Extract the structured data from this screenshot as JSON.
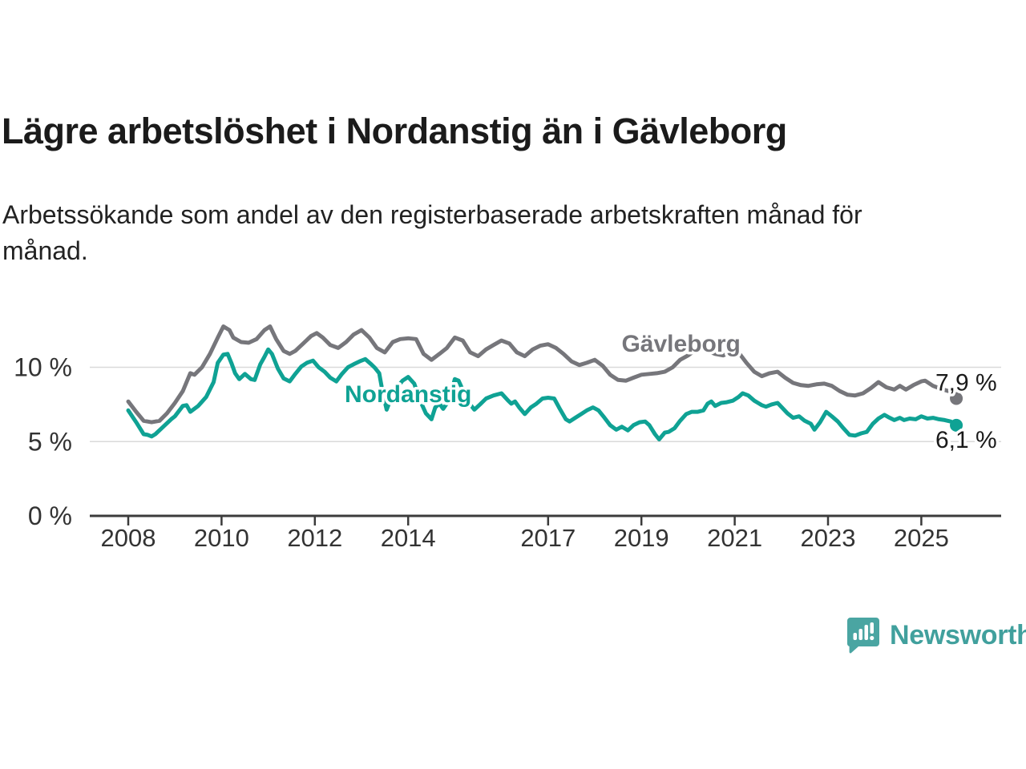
{
  "header": {
    "title": "Lägre arbetslöshet i Nordanstig än i Gävleborg",
    "subtitle": "Arbetssökande som andel av den registerbaserade arbetskraften månad för månad."
  },
  "footer": {
    "brand": "Newsworthy",
    "logo_icon": "speech-bubble-bar-chart-icon"
  },
  "colors": {
    "gavleborg": "#76767b",
    "nordanstig": "#0fa294",
    "axis": "#3b3b3b",
    "grid": "#d9d9d9",
    "tick_label": "#333333",
    "end_label": "#1a1a1a",
    "logo_teal": "#4aa5a2"
  },
  "chart_data": {
    "type": "line",
    "title": "Lägre arbetslöshet i Nordanstig än i Gävleborg",
    "subtitle": "Arbetssökande som andel av den registerbaserade arbetskraften månad för månad.",
    "xlabel": "",
    "ylabel": "",
    "xlim": [
      2007.9,
      2026.0
    ],
    "ylim": [
      0,
      13.5
    ],
    "grid": "horizontal",
    "legend_position": "inline-labels",
    "x_ticks": [
      2008,
      2010,
      2012,
      2014,
      2017,
      2019,
      2021,
      2023,
      2025
    ],
    "y_ticks": [
      {
        "value": 0,
        "label": "0 %"
      },
      {
        "value": 5,
        "label": "5 %"
      },
      {
        "value": 10,
        "label": "10 %"
      }
    ],
    "series": [
      {
        "name": "Gävleborg",
        "color": "#76767b",
        "end_label": "7,9 %",
        "end_value": 7.9,
        "inline_label_x": 2019.85,
        "inline_label_y": 11.6,
        "points": [
          [
            2008.0,
            7.7
          ],
          [
            2008.17,
            7.0
          ],
          [
            2008.33,
            6.4
          ],
          [
            2008.5,
            6.3
          ],
          [
            2008.67,
            6.4
          ],
          [
            2008.83,
            6.9
          ],
          [
            2009.0,
            7.6
          ],
          [
            2009.17,
            8.4
          ],
          [
            2009.33,
            9.6
          ],
          [
            2009.42,
            9.5
          ],
          [
            2009.58,
            10.0
          ],
          [
            2009.75,
            10.9
          ],
          [
            2009.92,
            12.0
          ],
          [
            2010.04,
            12.75
          ],
          [
            2010.17,
            12.5
          ],
          [
            2010.25,
            12.0
          ],
          [
            2010.42,
            11.7
          ],
          [
            2010.58,
            11.65
          ],
          [
            2010.75,
            11.9
          ],
          [
            2010.92,
            12.5
          ],
          [
            2011.04,
            12.75
          ],
          [
            2011.17,
            11.9
          ],
          [
            2011.33,
            11.1
          ],
          [
            2011.46,
            10.9
          ],
          [
            2011.58,
            11.1
          ],
          [
            2011.75,
            11.6
          ],
          [
            2011.92,
            12.1
          ],
          [
            2012.04,
            12.3
          ],
          [
            2012.17,
            12.0
          ],
          [
            2012.33,
            11.5
          ],
          [
            2012.5,
            11.3
          ],
          [
            2012.67,
            11.7
          ],
          [
            2012.83,
            12.2
          ],
          [
            2013.0,
            12.5
          ],
          [
            2013.17,
            12.0
          ],
          [
            2013.33,
            11.3
          ],
          [
            2013.5,
            11.0
          ],
          [
            2013.67,
            11.7
          ],
          [
            2013.83,
            11.9
          ],
          [
            2014.0,
            11.95
          ],
          [
            2014.17,
            11.9
          ],
          [
            2014.33,
            10.9
          ],
          [
            2014.5,
            10.5
          ],
          [
            2014.67,
            10.9
          ],
          [
            2014.83,
            11.3
          ],
          [
            2015.0,
            12.0
          ],
          [
            2015.17,
            11.8
          ],
          [
            2015.33,
            11.0
          ],
          [
            2015.5,
            10.75
          ],
          [
            2015.67,
            11.2
          ],
          [
            2015.83,
            11.5
          ],
          [
            2016.0,
            11.8
          ],
          [
            2016.17,
            11.6
          ],
          [
            2016.33,
            11.0
          ],
          [
            2016.5,
            10.75
          ],
          [
            2016.67,
            11.2
          ],
          [
            2016.83,
            11.45
          ],
          [
            2017.0,
            11.55
          ],
          [
            2017.17,
            11.3
          ],
          [
            2017.33,
            10.9
          ],
          [
            2017.5,
            10.4
          ],
          [
            2017.67,
            10.15
          ],
          [
            2017.83,
            10.3
          ],
          [
            2018.0,
            10.5
          ],
          [
            2018.17,
            10.1
          ],
          [
            2018.33,
            9.5
          ],
          [
            2018.5,
            9.15
          ],
          [
            2018.67,
            9.1
          ],
          [
            2018.83,
            9.3
          ],
          [
            2019.0,
            9.5
          ],
          [
            2019.17,
            9.55
          ],
          [
            2019.33,
            9.6
          ],
          [
            2019.5,
            9.7
          ],
          [
            2019.67,
            10.0
          ],
          [
            2019.83,
            10.5
          ],
          [
            2020.0,
            10.8
          ],
          [
            2020.17,
            11.2
          ],
          [
            2020.33,
            11.25
          ],
          [
            2020.42,
            11.1
          ],
          [
            2020.58,
            10.9
          ],
          [
            2020.75,
            10.8
          ],
          [
            2020.92,
            11.0
          ],
          [
            2021.08,
            11.0
          ],
          [
            2021.25,
            10.3
          ],
          [
            2021.42,
            9.7
          ],
          [
            2021.58,
            9.4
          ],
          [
            2021.75,
            9.6
          ],
          [
            2021.92,
            9.7
          ],
          [
            2022.08,
            9.3
          ],
          [
            2022.25,
            8.95
          ],
          [
            2022.42,
            8.8
          ],
          [
            2022.58,
            8.75
          ],
          [
            2022.75,
            8.85
          ],
          [
            2022.92,
            8.9
          ],
          [
            2023.08,
            8.75
          ],
          [
            2023.25,
            8.4
          ],
          [
            2023.42,
            8.15
          ],
          [
            2023.58,
            8.1
          ],
          [
            2023.75,
            8.25
          ],
          [
            2023.92,
            8.6
          ],
          [
            2024.08,
            9.0
          ],
          [
            2024.25,
            8.65
          ],
          [
            2024.42,
            8.5
          ],
          [
            2024.54,
            8.75
          ],
          [
            2024.67,
            8.5
          ],
          [
            2024.83,
            8.8
          ],
          [
            2025.0,
            9.05
          ],
          [
            2025.08,
            9.1
          ],
          [
            2025.25,
            8.75
          ],
          [
            2025.42,
            8.55
          ],
          [
            2025.58,
            8.4
          ],
          [
            2025.67,
            8.45
          ],
          [
            2025.75,
            7.9
          ]
        ]
      },
      {
        "name": "Nordanstig",
        "color": "#0fa294",
        "end_label": "6,1 %",
        "end_value": 6.1,
        "inline_label_x": 2014.0,
        "inline_label_y": 8.2,
        "points": [
          [
            2008.0,
            7.1
          ],
          [
            2008.17,
            6.3
          ],
          [
            2008.33,
            5.5
          ],
          [
            2008.42,
            5.45
          ],
          [
            2008.5,
            5.35
          ],
          [
            2008.58,
            5.5
          ],
          [
            2008.75,
            6.0
          ],
          [
            2008.92,
            6.5
          ],
          [
            2009.0,
            6.7
          ],
          [
            2009.17,
            7.4
          ],
          [
            2009.25,
            7.45
          ],
          [
            2009.33,
            7.0
          ],
          [
            2009.5,
            7.4
          ],
          [
            2009.67,
            8.0
          ],
          [
            2009.83,
            9.0
          ],
          [
            2009.92,
            10.3
          ],
          [
            2010.04,
            10.85
          ],
          [
            2010.13,
            10.9
          ],
          [
            2010.21,
            10.3
          ],
          [
            2010.29,
            9.6
          ],
          [
            2010.38,
            9.2
          ],
          [
            2010.5,
            9.55
          ],
          [
            2010.63,
            9.2
          ],
          [
            2010.71,
            9.15
          ],
          [
            2010.83,
            10.2
          ],
          [
            2010.92,
            10.7
          ],
          [
            2011.0,
            11.2
          ],
          [
            2011.08,
            10.9
          ],
          [
            2011.21,
            9.9
          ],
          [
            2011.33,
            9.25
          ],
          [
            2011.46,
            9.05
          ],
          [
            2011.58,
            9.55
          ],
          [
            2011.71,
            10.05
          ],
          [
            2011.83,
            10.3
          ],
          [
            2011.96,
            10.45
          ],
          [
            2012.08,
            10.0
          ],
          [
            2012.21,
            9.7
          ],
          [
            2012.33,
            9.3
          ],
          [
            2012.46,
            9.05
          ],
          [
            2012.58,
            9.55
          ],
          [
            2012.71,
            10.0
          ],
          [
            2012.83,
            10.2
          ],
          [
            2012.96,
            10.4
          ],
          [
            2013.08,
            10.55
          ],
          [
            2013.21,
            10.2
          ],
          [
            2013.29,
            9.95
          ],
          [
            2013.38,
            9.6
          ],
          [
            2013.46,
            8.2
          ],
          [
            2013.54,
            7.15
          ],
          [
            2013.63,
            7.9
          ],
          [
            2013.75,
            8.6
          ],
          [
            2013.88,
            9.1
          ],
          [
            2014.0,
            9.35
          ],
          [
            2014.13,
            8.9
          ],
          [
            2014.25,
            7.8
          ],
          [
            2014.38,
            6.9
          ],
          [
            2014.5,
            6.5
          ],
          [
            2014.58,
            7.3
          ],
          [
            2014.67,
            7.55
          ],
          [
            2014.75,
            7.2
          ],
          [
            2014.88,
            7.8
          ],
          [
            2015.0,
            9.2
          ],
          [
            2015.08,
            9.1
          ],
          [
            2015.21,
            8.2
          ],
          [
            2015.33,
            7.5
          ],
          [
            2015.42,
            7.15
          ],
          [
            2015.54,
            7.5
          ],
          [
            2015.67,
            7.9
          ],
          [
            2015.83,
            8.1
          ],
          [
            2016.0,
            8.25
          ],
          [
            2016.13,
            7.8
          ],
          [
            2016.21,
            7.55
          ],
          [
            2016.29,
            7.7
          ],
          [
            2016.38,
            7.3
          ],
          [
            2016.5,
            6.85
          ],
          [
            2016.63,
            7.3
          ],
          [
            2016.75,
            7.55
          ],
          [
            2016.88,
            7.9
          ],
          [
            2017.0,
            7.95
          ],
          [
            2017.13,
            7.9
          ],
          [
            2017.25,
            7.2
          ],
          [
            2017.38,
            6.5
          ],
          [
            2017.46,
            6.35
          ],
          [
            2017.58,
            6.6
          ],
          [
            2017.71,
            6.85
          ],
          [
            2017.83,
            7.1
          ],
          [
            2017.96,
            7.3
          ],
          [
            2018.08,
            7.1
          ],
          [
            2018.21,
            6.6
          ],
          [
            2018.33,
            6.1
          ],
          [
            2018.46,
            5.8
          ],
          [
            2018.58,
            6.0
          ],
          [
            2018.71,
            5.75
          ],
          [
            2018.83,
            6.1
          ],
          [
            2018.96,
            6.3
          ],
          [
            2019.08,
            6.35
          ],
          [
            2019.17,
            6.1
          ],
          [
            2019.29,
            5.5
          ],
          [
            2019.38,
            5.15
          ],
          [
            2019.5,
            5.6
          ],
          [
            2019.58,
            5.65
          ],
          [
            2019.71,
            5.9
          ],
          [
            2019.83,
            6.4
          ],
          [
            2019.96,
            6.85
          ],
          [
            2020.08,
            7.0
          ],
          [
            2020.21,
            7.0
          ],
          [
            2020.33,
            7.1
          ],
          [
            2020.42,
            7.55
          ],
          [
            2020.5,
            7.7
          ],
          [
            2020.58,
            7.4
          ],
          [
            2020.71,
            7.6
          ],
          [
            2020.83,
            7.65
          ],
          [
            2020.96,
            7.75
          ],
          [
            2021.08,
            8.0
          ],
          [
            2021.17,
            8.25
          ],
          [
            2021.29,
            8.1
          ],
          [
            2021.42,
            7.75
          ],
          [
            2021.5,
            7.6
          ],
          [
            2021.58,
            7.45
          ],
          [
            2021.67,
            7.35
          ],
          [
            2021.79,
            7.5
          ],
          [
            2021.92,
            7.6
          ],
          [
            2022.04,
            7.2
          ],
          [
            2022.13,
            6.9
          ],
          [
            2022.25,
            6.6
          ],
          [
            2022.38,
            6.7
          ],
          [
            2022.5,
            6.4
          ],
          [
            2022.63,
            6.2
          ],
          [
            2022.71,
            5.8
          ],
          [
            2022.83,
            6.3
          ],
          [
            2022.96,
            7.0
          ],
          [
            2023.08,
            6.7
          ],
          [
            2023.21,
            6.35
          ],
          [
            2023.33,
            5.9
          ],
          [
            2023.46,
            5.45
          ],
          [
            2023.58,
            5.4
          ],
          [
            2023.71,
            5.55
          ],
          [
            2023.83,
            5.65
          ],
          [
            2023.96,
            6.2
          ],
          [
            2024.08,
            6.55
          ],
          [
            2024.21,
            6.8
          ],
          [
            2024.29,
            6.65
          ],
          [
            2024.42,
            6.45
          ],
          [
            2024.54,
            6.6
          ],
          [
            2024.63,
            6.45
          ],
          [
            2024.75,
            6.55
          ],
          [
            2024.88,
            6.5
          ],
          [
            2025.0,
            6.7
          ],
          [
            2025.13,
            6.55
          ],
          [
            2025.25,
            6.6
          ],
          [
            2025.38,
            6.5
          ],
          [
            2025.5,
            6.45
          ],
          [
            2025.63,
            6.35
          ],
          [
            2025.75,
            6.1
          ]
        ]
      }
    ]
  }
}
